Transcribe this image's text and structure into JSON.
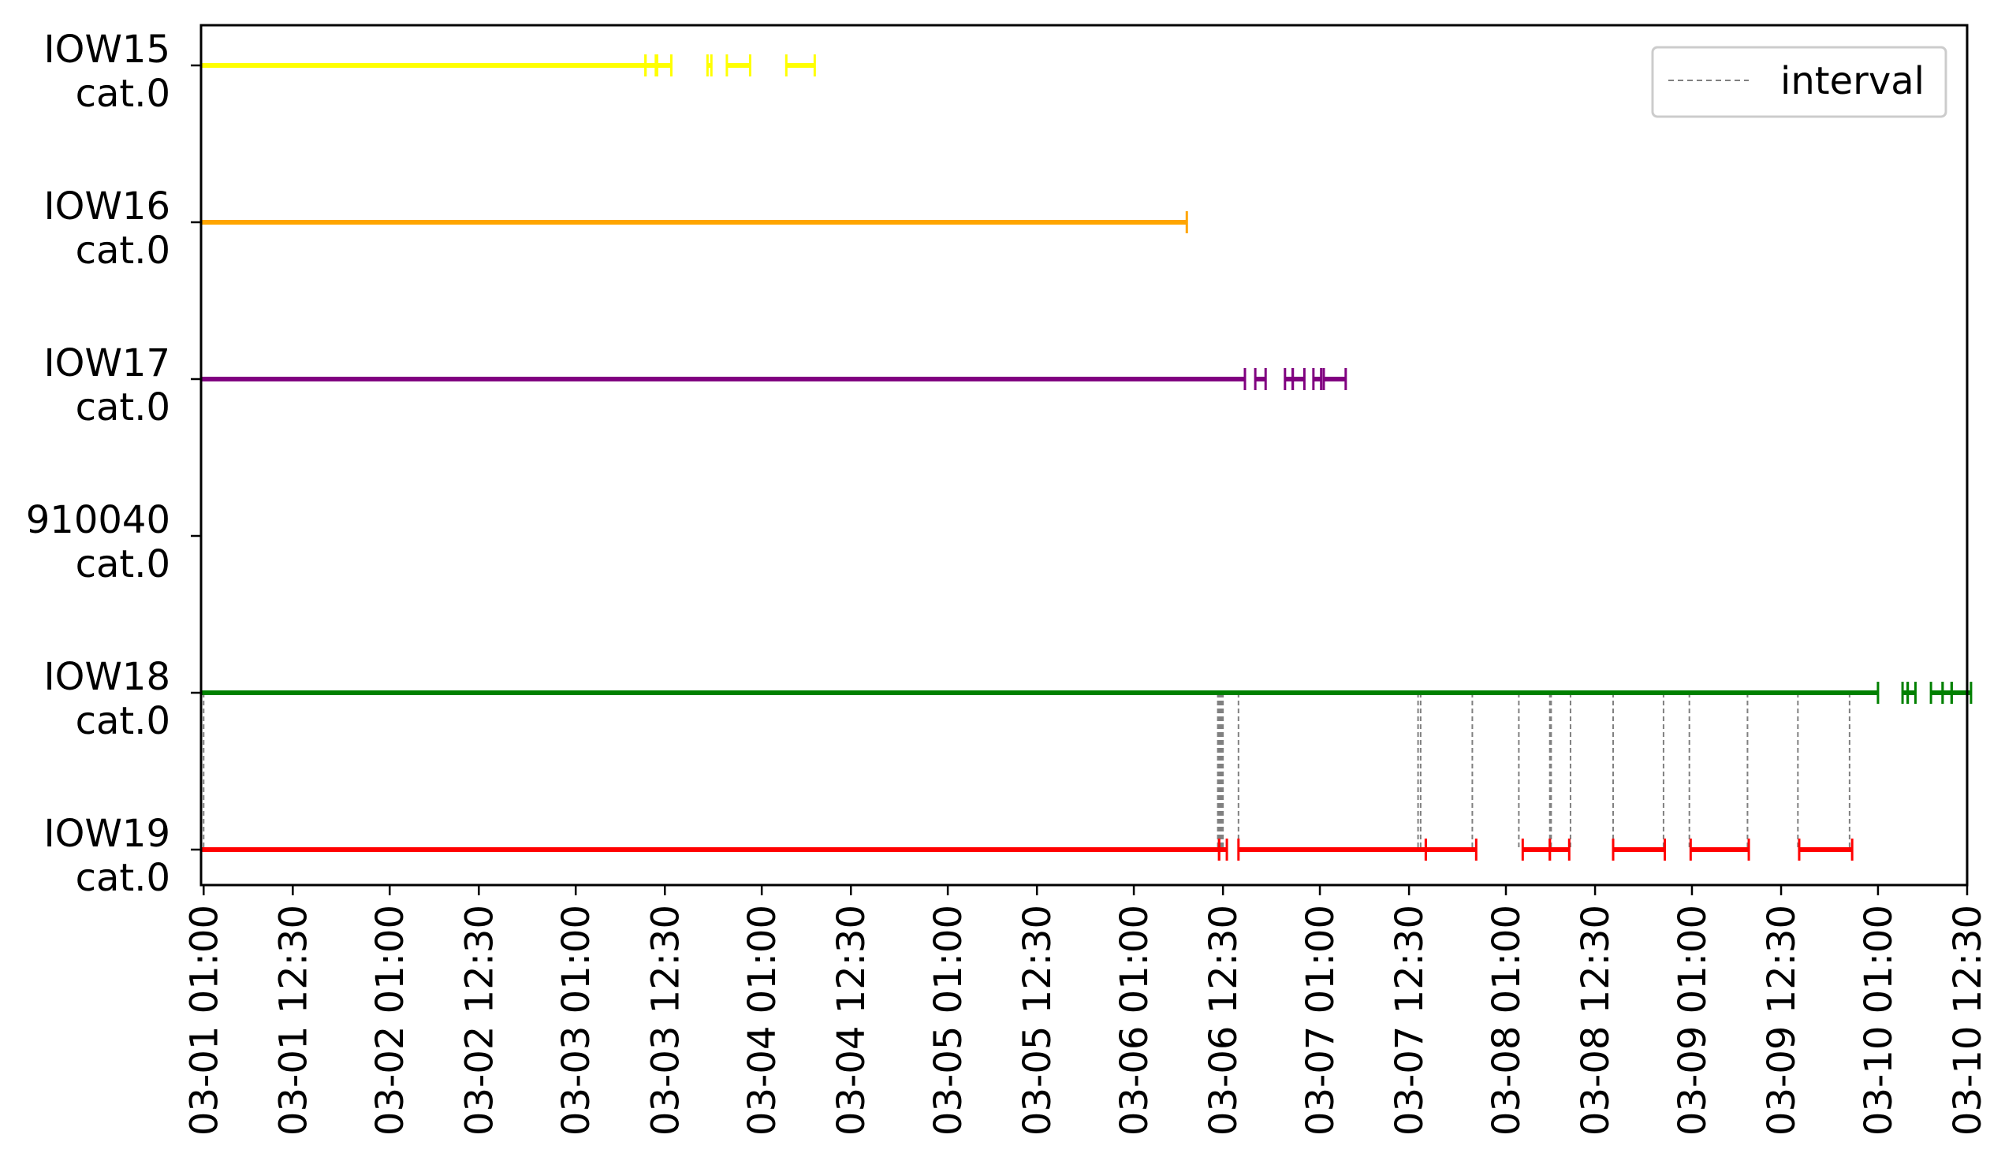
{
  "chart_data": {
    "type": "timeline",
    "title": "",
    "xlabel": "",
    "ylabel": "",
    "x_axis": {
      "range": [
        "03-01 00:40",
        "03-10 12:30"
      ],
      "ticks": [
        "03-01 01:00",
        "03-01 12:30",
        "03-02 01:00",
        "03-02 12:30",
        "03-03 01:00",
        "03-03 12:30",
        "03-04 01:00",
        "03-04 12:30",
        "03-05 01:00",
        "03-05 12:30",
        "03-06 01:00",
        "03-06 12:30",
        "03-07 01:00",
        "03-07 12:30",
        "03-08 01:00",
        "03-08 12:30",
        "03-09 01:00",
        "03-09 12:30",
        "03-10 01:00",
        "03-10 12:30"
      ]
    },
    "grid": false,
    "legend": {
      "placement": "upper right",
      "entries": [
        {
          "label": "interval",
          "style": "dashed",
          "color": "#808080"
        }
      ]
    },
    "rows": [
      {
        "line1": "IOW15",
        "line2": "cat.0",
        "color": "#ffff00",
        "intervals": [
          [
            "03-01 00:40",
            "03-03 10:00"
          ],
          [
            "03-03 10:00",
            "03-03 11:20"
          ],
          [
            "03-03 11:30",
            "03-03 13:20"
          ],
          [
            "03-03 18:00",
            "03-03 18:30"
          ],
          [
            "03-03 20:30",
            "03-03 23:30"
          ],
          [
            "03-04 04:10",
            "03-04 07:50"
          ]
        ]
      },
      {
        "line1": "IOW16",
        "line2": "cat.0",
        "color": "#ffa500",
        "intervals": [
          [
            "03-01 00:40",
            "03-06 07:50"
          ]
        ]
      },
      {
        "line1": "IOW17",
        "line2": "cat.0",
        "color": "#800080",
        "intervals": [
          [
            "03-01 00:40",
            "03-06 15:20"
          ],
          [
            "03-06 16:40",
            "03-06 18:00"
          ],
          [
            "03-06 20:30",
            "03-06 21:30"
          ],
          [
            "03-06 21:30",
            "03-06 23:00"
          ],
          [
            "03-07 00:10",
            "03-07 01:10"
          ],
          [
            "03-07 01:30",
            "03-07 04:20"
          ]
        ]
      },
      {
        "line1": "910040",
        "line2": "cat.0",
        "color": "#1f77b4",
        "intervals": []
      },
      {
        "line1": "IOW18",
        "line2": "cat.0",
        "color": "#008000",
        "intervals": [
          [
            "03-01 00:40",
            "03-10 01:00"
          ],
          [
            "03-10 04:10",
            "03-10 04:50"
          ],
          [
            "03-10 04:50",
            "03-10 05:50"
          ],
          [
            "03-10 07:50",
            "03-10 09:20"
          ],
          [
            "03-10 09:20",
            "03-10 10:30"
          ],
          [
            "03-10 10:30",
            "03-10 13:00"
          ]
        ]
      },
      {
        "line1": "IOW19",
        "line2": "cat.0",
        "color": "#ff0000",
        "intervals": [
          [
            "03-01 00:40",
            "03-06 12:00"
          ],
          [
            "03-06 12:00",
            "03-06 13:00"
          ],
          [
            "03-06 14:30",
            "03-07 14:40"
          ],
          [
            "03-07 14:40",
            "03-07 21:10"
          ],
          [
            "03-08 03:10",
            "03-08 06:40"
          ],
          [
            "03-08 06:40",
            "03-08 09:10"
          ],
          [
            "03-08 14:50",
            "03-08 21:30"
          ],
          [
            "03-09 00:50",
            "03-09 08:20"
          ],
          [
            "03-09 14:50",
            "03-09 21:40"
          ]
        ]
      }
    ],
    "connectors": {
      "from": "IOW18",
      "to": "IOW19",
      "times": [
        "03-01 01:00",
        "03-06 11:50",
        "03-06 12:00",
        "03-06 12:10",
        "03-06 12:20",
        "03-06 12:30",
        "03-06 14:30",
        "03-07 13:40",
        "03-07 14:00",
        "03-07 20:40",
        "03-08 02:40",
        "03-08 06:40",
        "03-08 06:50",
        "03-08 09:20",
        "03-08 14:50",
        "03-08 21:20",
        "03-09 00:40",
        "03-09 08:10",
        "03-09 14:40",
        "03-09 21:20"
      ]
    }
  }
}
